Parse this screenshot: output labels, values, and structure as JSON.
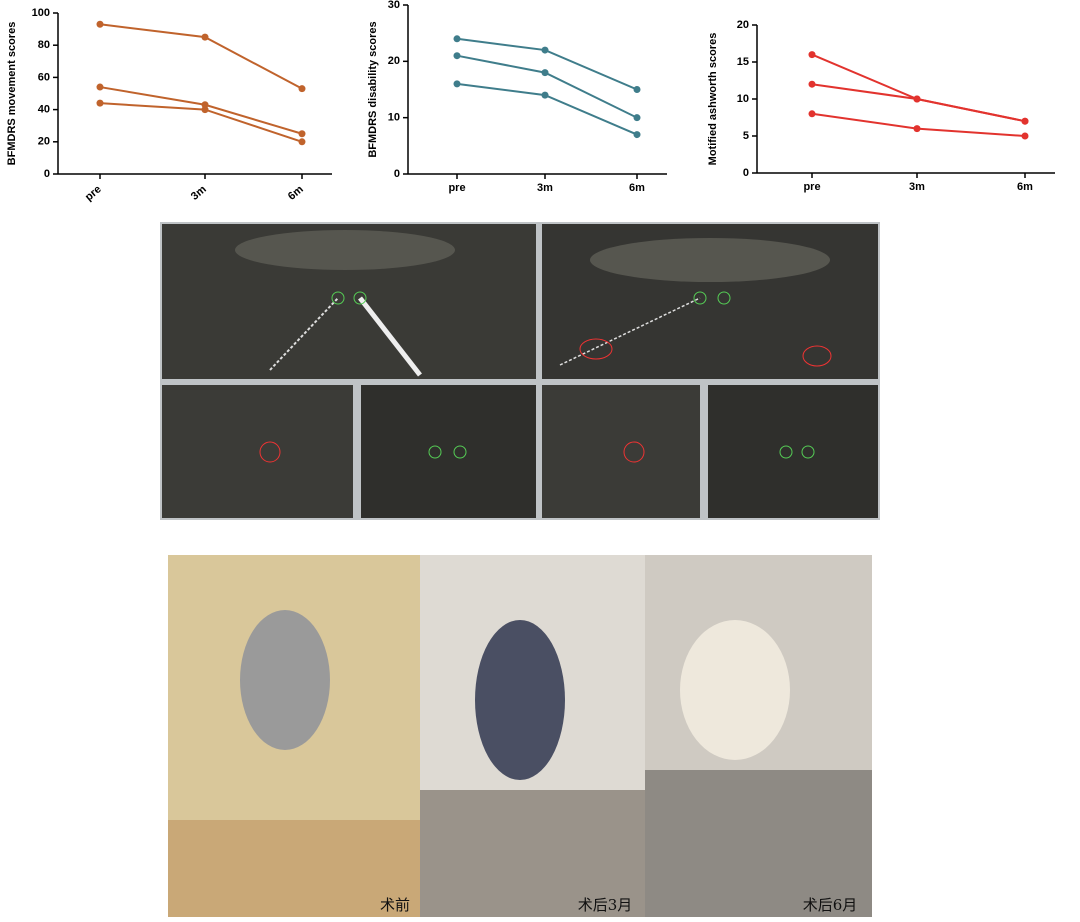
{
  "chart_data": [
    {
      "type": "line",
      "ylabel": "BFMDRS movement scores",
      "categories": [
        "pre",
        "3m",
        "6m"
      ],
      "ylim": [
        0,
        100
      ],
      "yticks": [
        0,
        20,
        40,
        60,
        80,
        100
      ],
      "series": [
        {
          "color": "#c0632c",
          "values": [
            93,
            85,
            53
          ]
        },
        {
          "color": "#c0632c",
          "values": [
            54,
            43,
            25
          ]
        },
        {
          "color": "#c0632c",
          "values": [
            44,
            40,
            20
          ]
        }
      ]
    },
    {
      "type": "line",
      "ylabel": "BFMDRS disability scores",
      "categories": [
        "pre",
        "3m",
        "6m"
      ],
      "ylim": [
        0,
        30
      ],
      "yticks": [
        0,
        10,
        20,
        30
      ],
      "series": [
        {
          "color": "#3f7d8b",
          "values": [
            24,
            22,
            15
          ]
        },
        {
          "color": "#3f7d8b",
          "values": [
            21,
            18,
            10
          ]
        },
        {
          "color": "#3f7d8b",
          "values": [
            16,
            14,
            7
          ]
        }
      ]
    },
    {
      "type": "line",
      "ylabel": "Motified ashworth scores",
      "categories": [
        "pre",
        "3m",
        "6m"
      ],
      "ylim": [
        0,
        20
      ],
      "yticks": [
        0,
        5,
        10,
        15,
        20
      ],
      "series": [
        {
          "color": "#e2332e",
          "values": [
            16,
            10,
            7
          ]
        },
        {
          "color": "#e2332e",
          "values": [
            12,
            10,
            7
          ]
        },
        {
          "color": "#e2332e",
          "values": [
            8,
            6,
            5
          ]
        }
      ]
    }
  ],
  "photos": {
    "captions": [
      "术前",
      "术后3月",
      "术后6月"
    ]
  }
}
